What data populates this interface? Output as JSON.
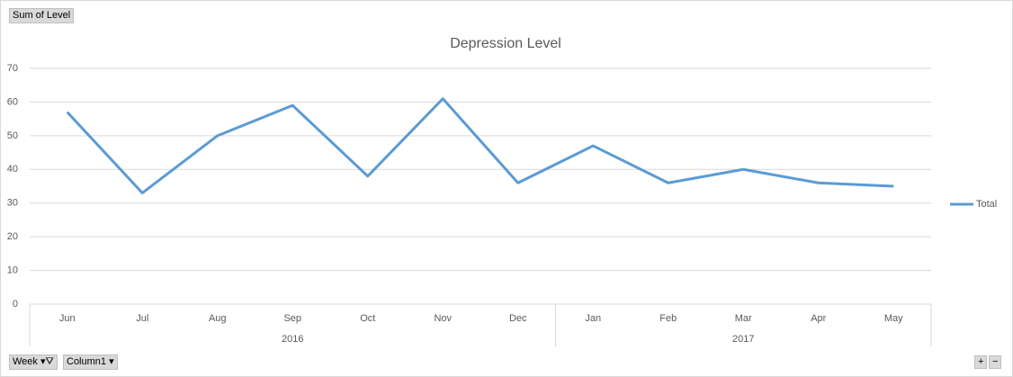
{
  "field_buttons": {
    "value": "Sum of Level",
    "row": "Week",
    "column": "Column1"
  },
  "chart_data": {
    "type": "line",
    "title": "Depression Level",
    "groups": [
      {
        "label": "2016",
        "categories": [
          "Jun",
          "Jul",
          "Aug",
          "Sep",
          "Oct",
          "Nov",
          "Dec"
        ]
      },
      {
        "label": "2017",
        "categories": [
          "Jan",
          "Feb",
          "Mar",
          "Apr",
          "May"
        ]
      }
    ],
    "series": [
      {
        "name": "Total",
        "color": "#5b9bd5",
        "values": [
          57,
          33,
          50,
          59,
          38,
          61,
          36,
          47,
          36,
          40,
          36,
          35
        ]
      }
    ],
    "ylim": [
      0,
      70
    ],
    "yticks": [
      0,
      10,
      20,
      30,
      40,
      50,
      60,
      70
    ],
    "grid": true,
    "legend": "right"
  }
}
